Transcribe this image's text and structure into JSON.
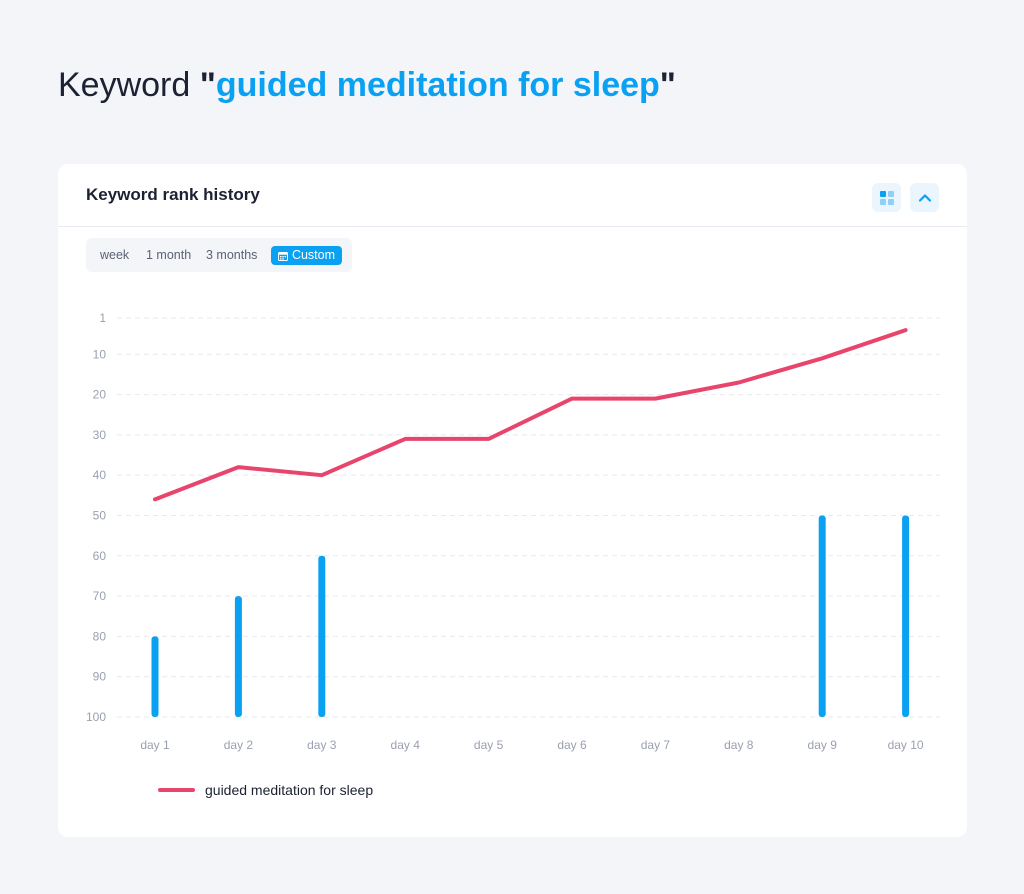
{
  "header": {
    "keyword_word": "Keyword",
    "keyword_value": "guided meditation for sleep"
  },
  "card": {
    "title": "Keyword rank history",
    "grid_button_icon": "grid-icon",
    "collapse_button_icon": "chevron-up-icon"
  },
  "range_tabs": {
    "week": "week",
    "month1": "1 month",
    "months3": "3 months",
    "custom": "Custom",
    "selected": "custom"
  },
  "colors": {
    "accent": "#0aa1f2",
    "line": "#e8456c",
    "bars": "#0aa1f2",
    "grid": "#e6e9ef"
  },
  "chart_data": {
    "type": "line",
    "categories": [
      "day 1",
      "day 2",
      "day 3",
      "day 4",
      "day 5",
      "day 6",
      "day 7",
      "day 8",
      "day 9",
      "day 10"
    ],
    "y_ticks": [
      1,
      10,
      20,
      30,
      40,
      50,
      60,
      70,
      80,
      90,
      100
    ],
    "ylim": [
      1,
      100
    ],
    "y_inverted": true,
    "grid": true,
    "series": [
      {
        "name": "guided meditation for sleep",
        "type": "line",
        "color": "#e8456c",
        "values": [
          46,
          38,
          40,
          31,
          31,
          21,
          21,
          17,
          11,
          4
        ]
      },
      {
        "type": "bar",
        "color": "#0aa1f2",
        "values": [
          80,
          70,
          60,
          null,
          null,
          null,
          null,
          null,
          50,
          50
        ]
      }
    ],
    "legend_position": "bottom-left"
  }
}
